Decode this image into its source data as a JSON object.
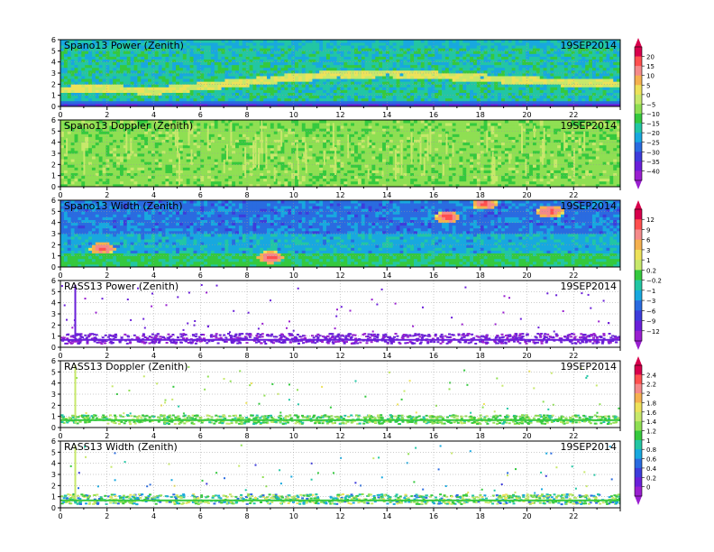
{
  "date": "19SEP2014",
  "x_axis": {
    "min": 0,
    "max": 24,
    "ticks": [
      0,
      2,
      4,
      6,
      8,
      10,
      12,
      14,
      16,
      18,
      20,
      22
    ]
  },
  "y_axis": {
    "min": 0,
    "max": 6,
    "ticks": [
      0,
      1,
      2,
      3,
      4,
      5,
      6
    ]
  },
  "panels": [
    {
      "title": "Spano13  Power  (Zenith)",
      "date": "19SEP2014"
    },
    {
      "title": "Spano13  Doppler  (Zenith)",
      "date": "19SEP2014"
    },
    {
      "title": "Spano13  Width  (Zenith)",
      "date": "19SEP2014"
    },
    {
      "title": "RASS13  Power  (Zenith)",
      "date": "19SEP2014"
    },
    {
      "title": "RASS13  Doppler  (Zenith)",
      "date": "19SEP2014"
    },
    {
      "title": "RASS13  Width  (Zenith)",
      "date": "19SEP2014"
    }
  ],
  "colorbars": [
    {
      "labels": [
        "20",
        "15",
        "10",
        "5",
        "0",
        "−5",
        "−10",
        "−15",
        "−20",
        "−25",
        "−30",
        "−35",
        "−40"
      ],
      "colors": [
        "#d8004c",
        "#ff4f4f",
        "#f58a8a",
        "#f5b14f",
        "#ede25a",
        "#c7e86b",
        "#8fdf53",
        "#35c93e",
        "#22c6a4",
        "#18a8df",
        "#2a6be0",
        "#3e3cdb",
        "#6a1fd9",
        "#9a1fd0"
      ]
    },
    {
      "labels": [
        "12",
        "9",
        "6",
        "3",
        "1",
        "0.2",
        "−0.2",
        "−1",
        "−3",
        "−6",
        "−9",
        "−12"
      ],
      "colors": [
        "#d8004c",
        "#ff4f4f",
        "#f58a8a",
        "#f5b14f",
        "#ede25a",
        "#c7e86b",
        "#35c93e",
        "#22c6a4",
        "#18a8df",
        "#2a6be0",
        "#3e3cdb",
        "#6a1fd9",
        "#9a1fd0"
      ]
    },
    {
      "labels": [
        "2.4",
        "2.2",
        "2",
        "1.8",
        "1.6",
        "1.4",
        "1.2",
        "1",
        "0.8",
        "0.6",
        "0.4",
        "0.2",
        "0"
      ],
      "colors": [
        "#d8004c",
        "#ff4f4f",
        "#f58a8a",
        "#f5b14f",
        "#ede25a",
        "#c7e86b",
        "#8fdf53",
        "#35c93e",
        "#22c6a4",
        "#18a8df",
        "#2a6be0",
        "#3e3cdb",
        "#6a1fd9",
        "#9a1fd0"
      ]
    }
  ],
  "chart_data": [
    {
      "type": "heatmap",
      "title": "Spano13  Power  (Zenith)",
      "xlim": [
        0,
        24
      ],
      "ylim": [
        0,
        6
      ],
      "features": {
        "background_value": -12,
        "layer_band": {
          "x": [
            0,
            2,
            4,
            6,
            8,
            10,
            12,
            14,
            16,
            18,
            20,
            22,
            24
          ],
          "height": [
            1.5,
            1.6,
            1.4,
            1.8,
            2.2,
            2.6,
            2.9,
            3.0,
            2.8,
            2.6,
            2.3,
            2.2,
            2.0
          ],
          "value": 2
        },
        "top_value": -22,
        "bottom_value": -32
      }
    },
    {
      "type": "heatmap",
      "title": "Spano13  Doppler  (Zenith)",
      "xlim": [
        0,
        24
      ],
      "ylim": [
        0,
        6
      ],
      "features": {
        "background_value": -0.3,
        "range": [
          -1,
          1
        ]
      }
    },
    {
      "type": "heatmap",
      "title": "Spano13  Width  (Zenith)",
      "xlim": [
        0,
        24
      ],
      "ylim": [
        0,
        6
      ],
      "features": {
        "background_value": -8,
        "hot_spots": [
          {
            "x": 1.8,
            "y": 1.7,
            "value": 10
          },
          {
            "x": 16.6,
            "y": 4.5,
            "value": 6
          },
          {
            "x": 18.2,
            "y": 5.7,
            "value": 6
          },
          {
            "x": 21.0,
            "y": 5.0,
            "value": 6
          },
          {
            "x": 9.0,
            "y": 0.9,
            "value": 6
          }
        ]
      }
    },
    {
      "type": "scatter",
      "title": "RASS13  Power  (Zenith)",
      "xlim": [
        0,
        24
      ],
      "ylim": [
        0,
        6
      ],
      "features": {
        "dense_band": [
          0.4,
          1.3
        ],
        "spike_x": 0.6,
        "value": -11
      }
    },
    {
      "type": "scatter",
      "title": "RASS13  Doppler  (Zenith)",
      "xlim": [
        0,
        24
      ],
      "ylim": [
        0,
        6
      ],
      "features": {
        "dense_band": [
          0.4,
          1.2
        ],
        "spike_x": 0.6,
        "value": 1.2
      }
    },
    {
      "type": "scatter",
      "title": "RASS13  Width  (Zenith)",
      "xlim": [
        0,
        24
      ],
      "ylim": [
        0,
        6
      ],
      "features": {
        "dense_band": [
          0.4,
          1.3
        ],
        "spike_x": 0.6,
        "value": 0.6
      }
    }
  ]
}
